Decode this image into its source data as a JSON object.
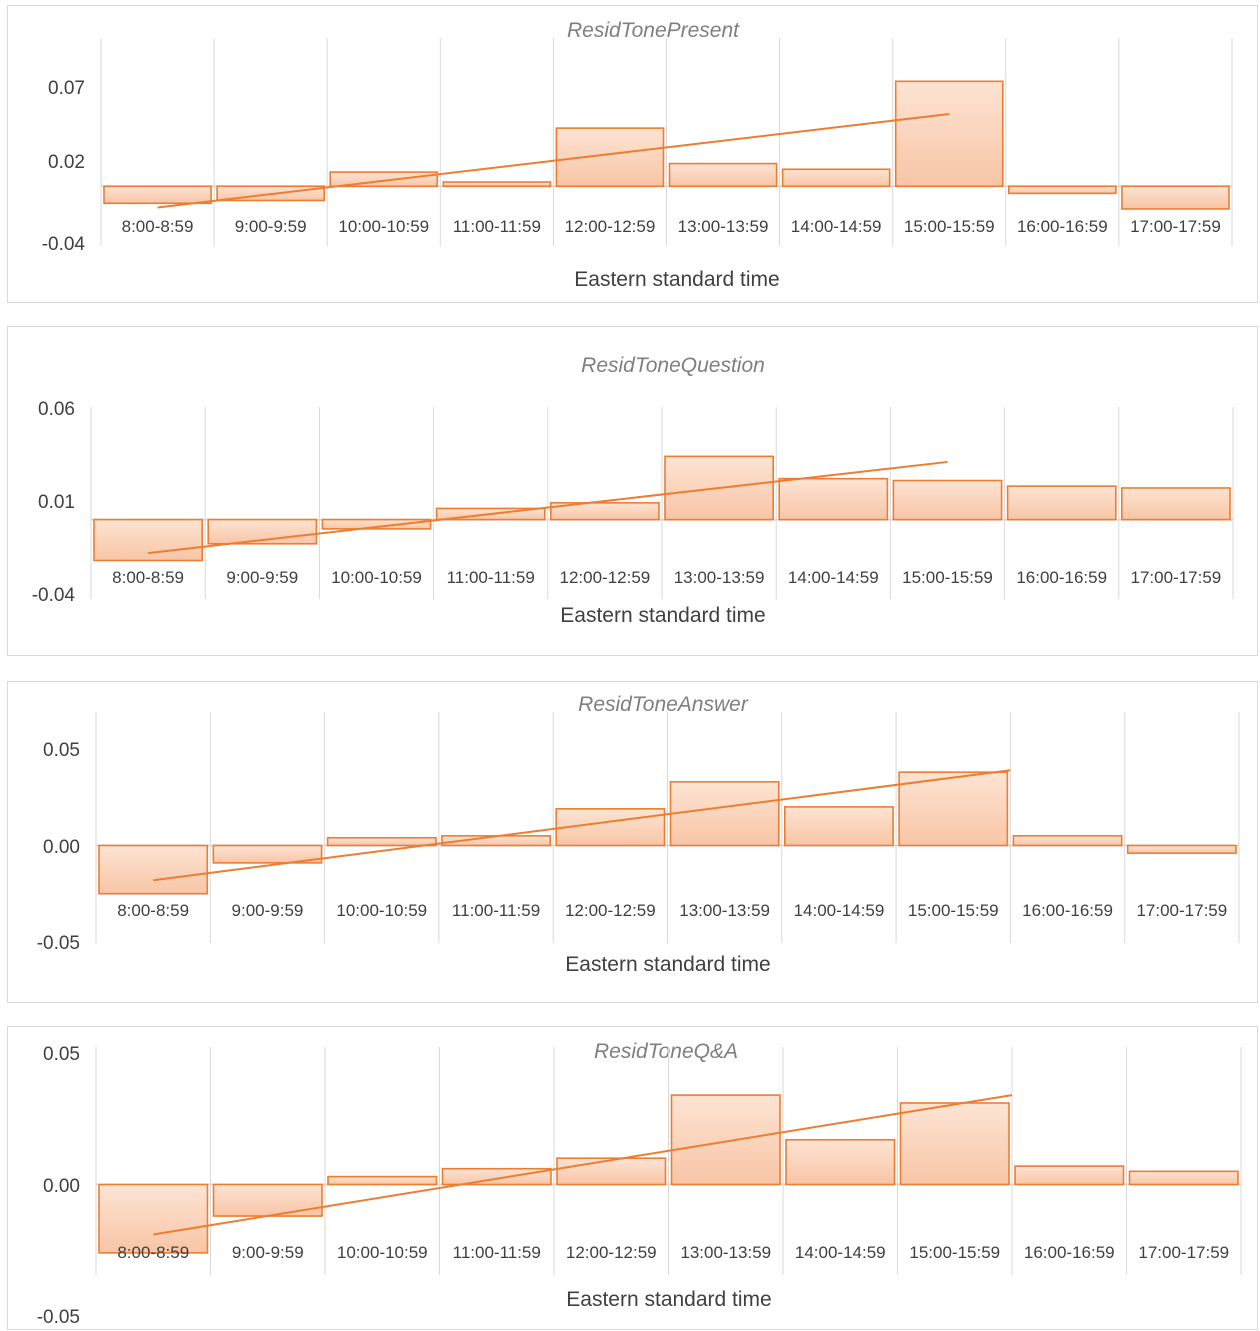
{
  "chart_data": [
    {
      "type": "bar",
      "title": "ResidTonePresent",
      "xlabel": "Eastern standard time",
      "ylabel": "",
      "categories": [
        "8:00-8:59",
        "9:00-9:59",
        "10:00-10:59",
        "11:00-11:59",
        "12:00-12:59",
        "13:00-13:59",
        "14:00-14:59",
        "15:00-15:59",
        "16:00-16:59",
        "17:00-17:59"
      ],
      "values": [
        -0.012,
        -0.01,
        0.01,
        0.003,
        0.041,
        0.016,
        0.012,
        0.074,
        -0.005,
        -0.016
      ],
      "yticks": [
        "0.07",
        "0.02",
        "-0.04"
      ],
      "ylim": [
        -0.04,
        0.07
      ],
      "trendline": {
        "type": "linear",
        "from_category": 0,
        "to_category": 7,
        "y_start": -0.015,
        "y_end": 0.051
      },
      "grid": "vertical",
      "colors": {
        "fill": "#f8c5a6",
        "stroke": "#ed7d31",
        "line": "#ed7d31"
      }
    },
    {
      "type": "bar",
      "title": "ResidToneQuestion",
      "xlabel": "Eastern standard time",
      "ylabel": "",
      "categories": [
        "8:00-8:59",
        "9:00-9:59",
        "10:00-10:59",
        "11:00-11:59",
        "12:00-12:59",
        "13:00-13:59",
        "14:00-14:59",
        "15:00-15:59",
        "16:00-16:59",
        "17:00-17:59"
      ],
      "values": [
        -0.022,
        -0.013,
        -0.005,
        0.006,
        0.009,
        0.034,
        0.022,
        0.021,
        0.018,
        0.017
      ],
      "yticks": [
        "0.06",
        "0.01",
        "-0.04"
      ],
      "ylim": [
        -0.04,
        0.06
      ],
      "trendline": {
        "type": "linear",
        "from_category": 0,
        "to_category": 7,
        "y_start": -0.018,
        "y_end": 0.031
      },
      "grid": "vertical",
      "colors": {
        "fill": "#f8c5a6",
        "stroke": "#ed7d31",
        "line": "#ed7d31"
      }
    },
    {
      "type": "bar",
      "title": "ResidToneAnswer",
      "xlabel": "Eastern standard time",
      "ylabel": "",
      "categories": [
        "8:00-8:59",
        "9:00-9:59",
        "10:00-10:59",
        "11:00-11:59",
        "12:00-12:59",
        "13:00-13:59",
        "14:00-14:59",
        "15:00-15:59",
        "16:00-16:59",
        "17:00-17:59"
      ],
      "values": [
        -0.025,
        -0.009,
        0.004,
        0.005,
        0.019,
        0.033,
        0.02,
        0.038,
        0.005,
        -0.004
      ],
      "yticks": [
        "0.05",
        "0.00",
        "-0.05"
      ],
      "ylim": [
        -0.05,
        0.05
      ],
      "trendline": {
        "type": "linear",
        "from_category": 0,
        "to_category": 7.5,
        "y_start": -0.018,
        "y_end": 0.039
      },
      "grid": "vertical",
      "colors": {
        "fill": "#f8c5a6",
        "stroke": "#ed7d31",
        "line": "#ed7d31"
      }
    },
    {
      "type": "bar",
      "title": "ResidToneQ&A",
      "xlabel": "Eastern standard time",
      "ylabel": "",
      "categories": [
        "8:00-8:59",
        "9:00-9:59",
        "10:00-10:59",
        "11:00-11:59",
        "12:00-12:59",
        "13:00-13:59",
        "14:00-14:59",
        "15:00-15:59",
        "16:00-16:59",
        "17:00-17:59"
      ],
      "values": [
        -0.026,
        -0.012,
        0.003,
        0.006,
        0.01,
        0.034,
        0.017,
        0.031,
        0.007,
        0.005
      ],
      "yticks": [
        "0.05",
        "0.00",
        "-0.05"
      ],
      "ylim": [
        -0.05,
        0.05
      ],
      "trendline": {
        "type": "linear",
        "from_category": 0,
        "to_category": 7.5,
        "y_start": -0.019,
        "y_end": 0.034
      },
      "grid": "vertical",
      "colors": {
        "fill": "#f8c5a6",
        "stroke": "#ed7d31",
        "line": "#ed7d31"
      }
    }
  ]
}
